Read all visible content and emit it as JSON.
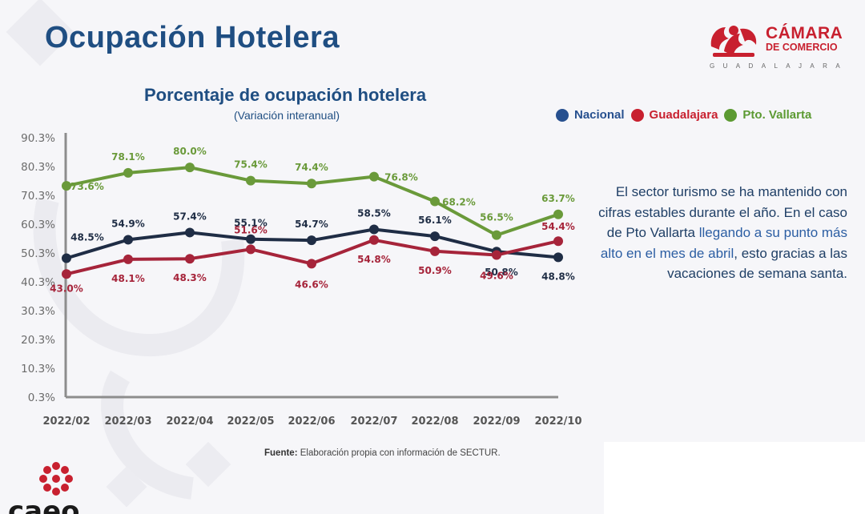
{
  "page": {
    "title": "Ocupación Hotelera",
    "brand": {
      "line1": "CÁMARA",
      "line2": "DE COMERCIO",
      "line3": "GUADALAJARA"
    },
    "bottom_brand": "caeo",
    "source_label": "Fuente:",
    "source_text": "Elaboración propia con información de SECTUR.",
    "commentary": {
      "part1": "El sector turismo se ha mantenido con cifras estables durante el año. En el caso de Pto Vallarta ",
      "highlight": "llegando a su punto más alto en el mes de abril",
      "part2": ", esto gracias a las vacaciones de semana santa."
    }
  },
  "chart_data": {
    "type": "line",
    "title": "Porcentaje de ocupación hotelera",
    "subtitle": "(Variación interanual)",
    "categories": [
      "2022/02",
      "2022/03",
      "2022/04",
      "2022/05",
      "2022/06",
      "2022/07",
      "2022/08",
      "2022/09",
      "2022/10"
    ],
    "y_ticks": [
      "0.3%",
      "10.3%",
      "20.3%",
      "30.3%",
      "40.3%",
      "50.3%",
      "60.3%",
      "70.3%",
      "80.3%",
      "90.3%"
    ],
    "ylim": [
      0.3,
      90.3
    ],
    "series": [
      {
        "name": "Nacional",
        "color": "#1f2d45",
        "legend_color": "#27508f",
        "values": [
          48.5,
          54.9,
          57.4,
          55.1,
          54.7,
          58.5,
          56.1,
          50.8,
          48.8
        ],
        "labels": [
          "48.5%",
          "54.9%",
          "57.4%",
          "55.1%",
          "54.7%",
          "58.5%",
          "56.1%",
          "50.8%",
          "48.8%"
        ]
      },
      {
        "name": "Guadalajara",
        "color": "#a6243a",
        "legend_color": "#c8202f",
        "values": [
          43.0,
          48.1,
          48.3,
          51.6,
          46.6,
          54.8,
          50.9,
          49.6,
          54.4
        ],
        "labels": [
          "43.0%",
          "48.1%",
          "48.3%",
          "51.6%",
          "46.6%",
          "54.8%",
          "50.9%",
          "49.6%",
          "54.4%"
        ]
      },
      {
        "name": "Pto. Vallarta",
        "color": "#6a9a3a",
        "legend_color": "#5c9a32",
        "values": [
          73.6,
          78.1,
          80.0,
          75.4,
          74.4,
          76.8,
          68.2,
          56.5,
          63.7
        ],
        "labels": [
          "73.6%",
          "78.1%",
          "80.0%",
          "75.4%",
          "74.4%",
          "76.8%",
          "68.2%",
          "56.5%",
          "63.7%"
        ]
      }
    ]
  }
}
